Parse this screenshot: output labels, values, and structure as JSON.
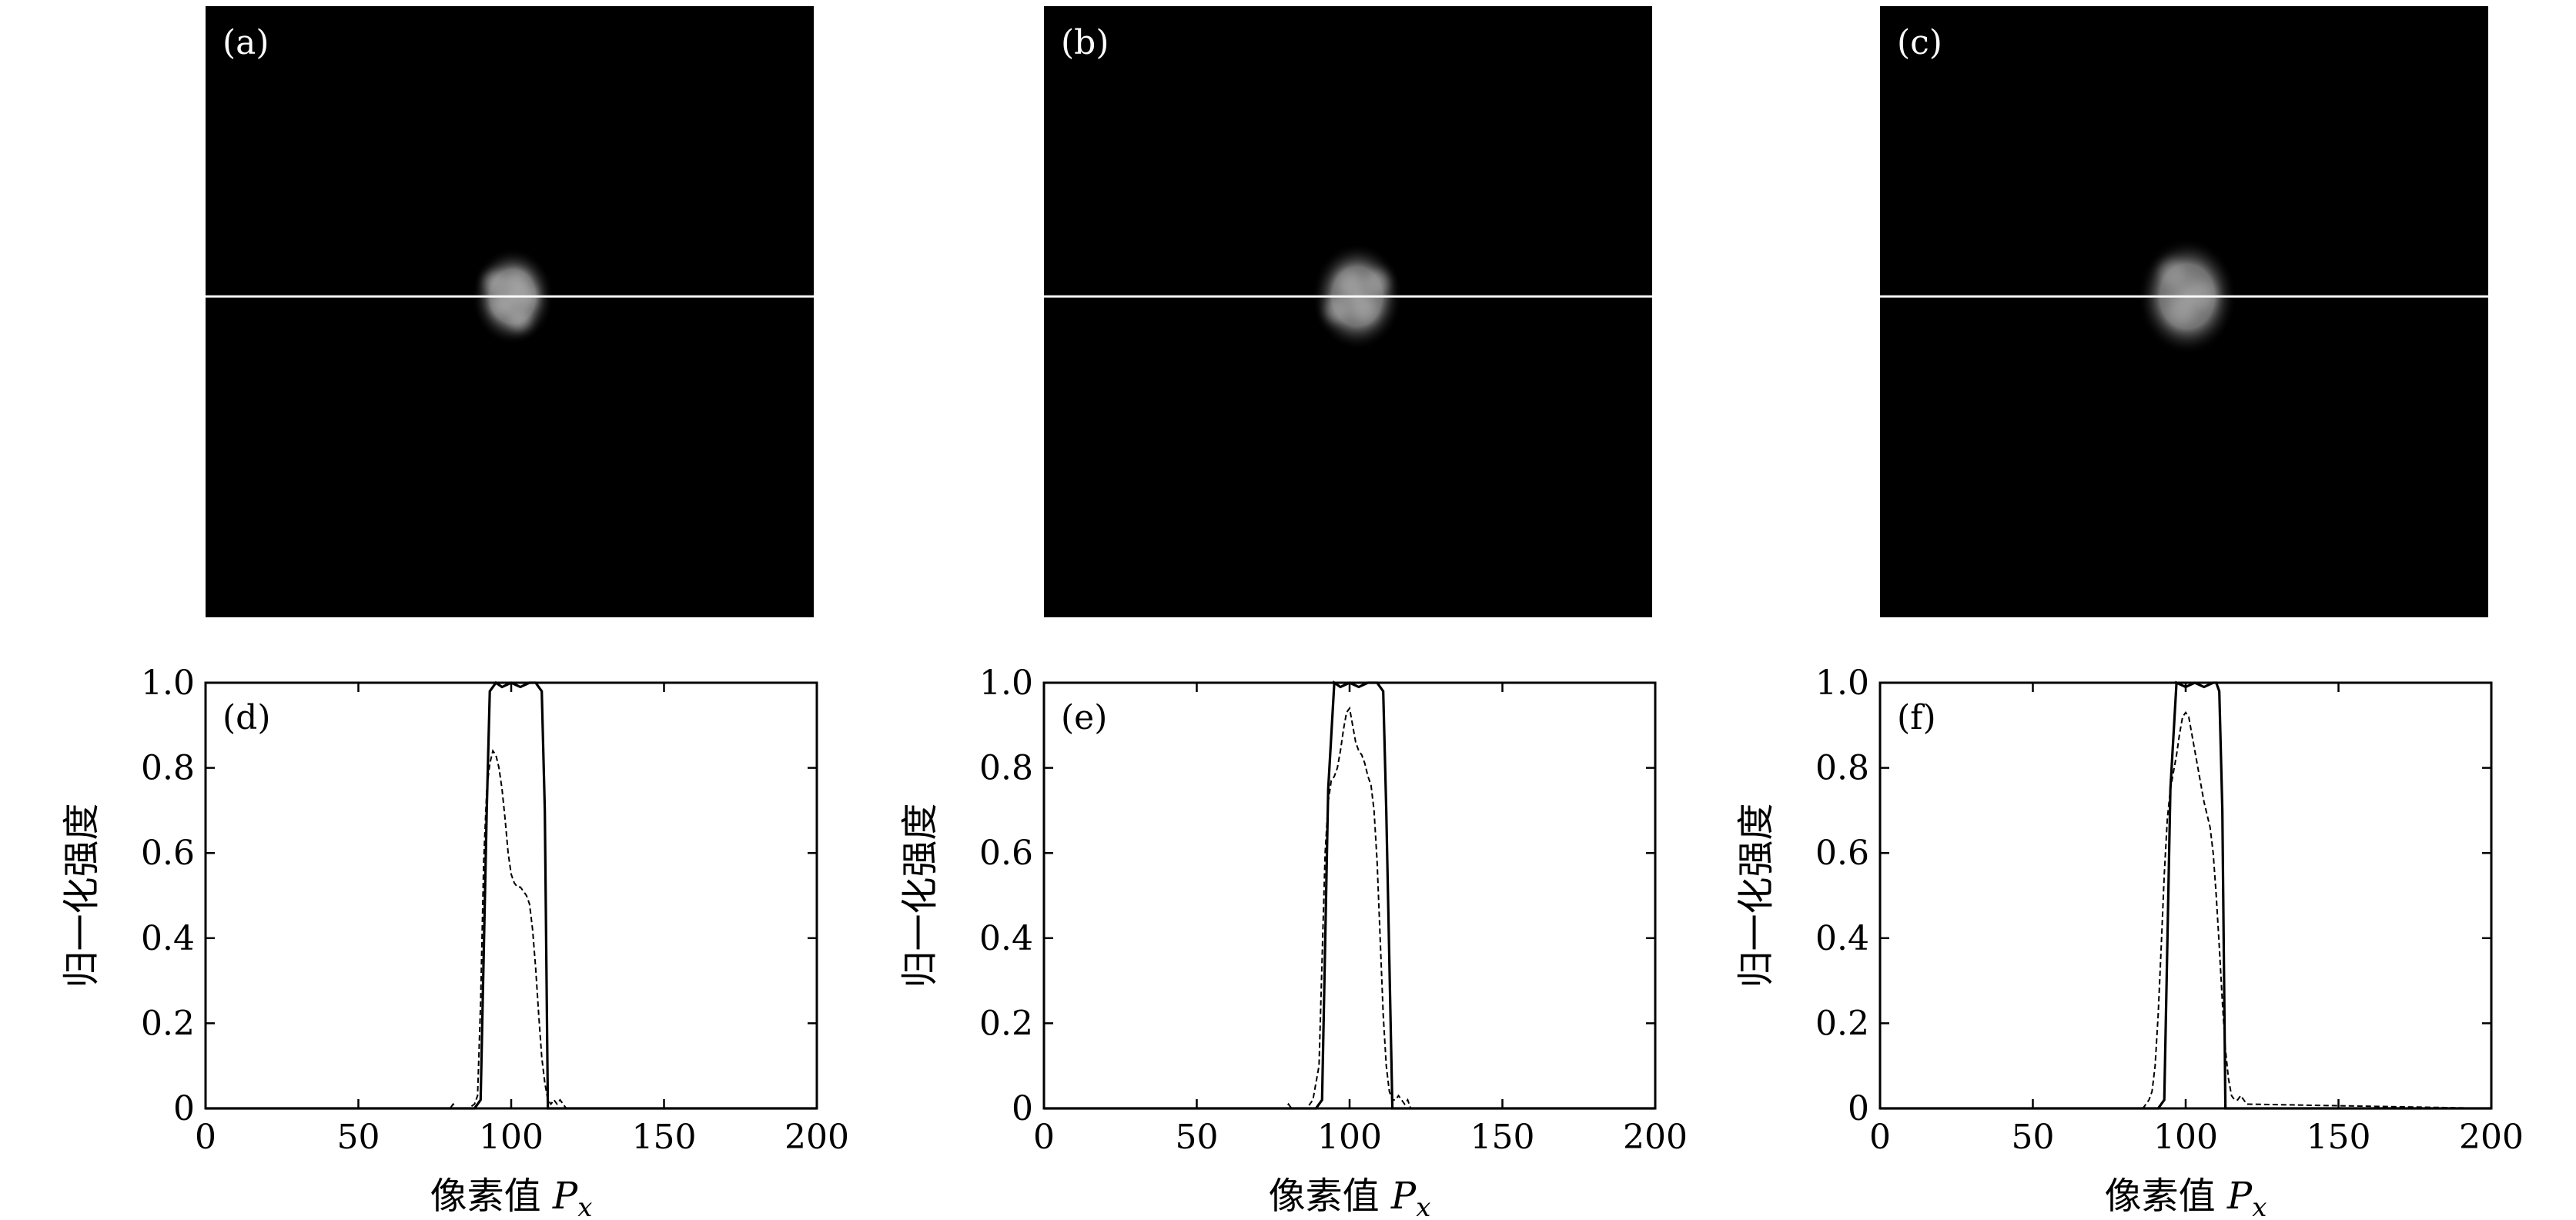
{
  "chart_data": [
    {
      "type": "image",
      "panel_label": "(a)",
      "spot": {
        "x": 101,
        "y": 95,
        "radius": 10,
        "speckle": 0.55
      },
      "profile_line_y": 95
    },
    {
      "type": "image",
      "panel_label": "(b)",
      "spot": {
        "x": 103,
        "y": 95,
        "radius": 11,
        "speckle": 0.35
      },
      "profile_line_y": 95
    },
    {
      "type": "image",
      "panel_label": "(c)",
      "spot": {
        "x": 101,
        "y": 95,
        "radius": 12,
        "speckle": 0.15
      },
      "profile_line_y": 95
    },
    {
      "type": "line",
      "panel_label": "(d)",
      "xlabel": "像素值 P_x",
      "xlabel_parts": {
        "text": "像素值 ",
        "var": "P",
        "sub": "x"
      },
      "ylabel": "归一化强度",
      "xlim": [
        0,
        200
      ],
      "ylim": [
        0,
        1.0
      ],
      "xticks": [
        0,
        50,
        100,
        150,
        200
      ],
      "xtick_labels": [
        "0",
        "50",
        "100",
        "150",
        "200"
      ],
      "yticks": [
        0,
        0.2,
        0.4,
        0.6,
        0.8,
        1.0
      ],
      "ytick_labels": [
        "0",
        "0.2",
        "0.4",
        "0.6",
        "0.8",
        "1.0"
      ],
      "series": [
        {
          "style": "solid",
          "x": [
            0,
            88,
            90,
            92,
            93,
            95,
            97,
            100,
            103,
            106,
            108,
            110,
            111,
            112,
            200
          ],
          "y": [
            0,
            0,
            0.02,
            0.7,
            0.98,
            1.0,
            0.99,
            1.0,
            0.99,
            1.0,
            1.0,
            0.98,
            0.7,
            0,
            0
          ]
        },
        {
          "style": "dashed",
          "x": [
            0,
            80,
            81,
            82,
            84,
            86,
            88,
            89,
            90,
            91,
            92,
            93,
            94,
            95,
            96,
            97,
            98,
            99,
            100,
            101,
            102,
            103,
            104,
            105,
            106,
            107,
            108,
            109,
            110,
            111,
            112,
            113,
            114,
            115,
            116,
            117,
            118,
            120,
            200
          ],
          "y": [
            0,
            0,
            0.01,
            0,
            0,
            0,
            0.01,
            0.03,
            0.25,
            0.58,
            0.75,
            0.81,
            0.84,
            0.83,
            0.8,
            0.75,
            0.68,
            0.6,
            0.55,
            0.53,
            0.52,
            0.52,
            0.51,
            0.5,
            0.48,
            0.42,
            0.33,
            0.22,
            0.12,
            0.06,
            0.02,
            0.01,
            0.02,
            0.01,
            0.02,
            0.01,
            0,
            0,
            0
          ]
        }
      ]
    },
    {
      "type": "line",
      "panel_label": "(e)",
      "xlabel": "像素值 P_x",
      "xlabel_parts": {
        "text": "像素值 ",
        "var": "P",
        "sub": "x"
      },
      "ylabel": "归一化强度",
      "xlim": [
        0,
        200
      ],
      "ylim": [
        0,
        1.0
      ],
      "xticks": [
        0,
        50,
        100,
        150,
        200
      ],
      "xtick_labels": [
        "0",
        "50",
        "100",
        "150",
        "200"
      ],
      "yticks": [
        0,
        0.2,
        0.4,
        0.6,
        0.8,
        1.0
      ],
      "ytick_labels": [
        "0",
        "0.2",
        "0.4",
        "0.6",
        "0.8",
        "1.0"
      ],
      "series": [
        {
          "style": "solid",
          "x": [
            0,
            89,
            91,
            93,
            95,
            97,
            100,
            103,
            106,
            109,
            111,
            112,
            114,
            200
          ],
          "y": [
            0,
            0,
            0.02,
            0.75,
            1.0,
            0.99,
            1.0,
            0.99,
            1.0,
            1.0,
            0.98,
            0.7,
            0,
            0
          ]
        },
        {
          "style": "dashed",
          "x": [
            0,
            79,
            80,
            81,
            83,
            86,
            88,
            90,
            91,
            92,
            93,
            94,
            95,
            96,
            97,
            98,
            99,
            100,
            101,
            102,
            103,
            104,
            105,
            106,
            107,
            108,
            109,
            110,
            111,
            112,
            113,
            114,
            115,
            116,
            117,
            118,
            119,
            120,
            200
          ],
          "y": [
            0,
            0,
            0.01,
            0,
            0,
            0,
            0.02,
            0.1,
            0.35,
            0.6,
            0.72,
            0.77,
            0.78,
            0.8,
            0.84,
            0.89,
            0.93,
            0.94,
            0.9,
            0.86,
            0.84,
            0.83,
            0.81,
            0.78,
            0.76,
            0.7,
            0.58,
            0.4,
            0.22,
            0.1,
            0.04,
            0.02,
            0.02,
            0.03,
            0.02,
            0.01,
            0.02,
            0,
            0
          ]
        }
      ]
    },
    {
      "type": "line",
      "panel_label": "(f)",
      "xlabel": "像素值 P_x",
      "xlabel_parts": {
        "text": "像素值 ",
        "var": "P",
        "sub": "x"
      },
      "ylabel": "归一化强度",
      "xlim": [
        0,
        200
      ],
      "ylim": [
        0,
        1.0
      ],
      "xticks": [
        0,
        50,
        100,
        150,
        200
      ],
      "xtick_labels": [
        "0",
        "50",
        "100",
        "150",
        "200"
      ],
      "yticks": [
        0,
        0.2,
        0.4,
        0.6,
        0.8,
        1.0
      ],
      "ytick_labels": [
        "0",
        "0.2",
        "0.4",
        "0.6",
        "0.8",
        "1.0"
      ],
      "series": [
        {
          "style": "solid",
          "x": [
            0,
            91,
            93,
            95,
            97,
            100,
            103,
            106,
            109,
            110,
            111,
            112,
            113,
            200
          ],
          "y": [
            0,
            0,
            0.02,
            0.75,
            1.0,
            0.99,
            1.0,
            0.99,
            1.0,
            1.0,
            0.98,
            0.7,
            0,
            0
          ]
        },
        {
          "style": "dashed",
          "x": [
            0,
            86,
            87,
            88,
            89,
            90,
            91,
            92,
            93,
            94,
            95,
            96,
            97,
            98,
            99,
            100,
            101,
            102,
            103,
            104,
            105,
            106,
            107,
            108,
            109,
            110,
            111,
            112,
            113,
            114,
            115,
            116,
            117,
            118,
            119,
            120,
            200
          ],
          "y": [
            0,
            0,
            0.01,
            0.02,
            0.04,
            0.1,
            0.22,
            0.38,
            0.55,
            0.68,
            0.75,
            0.79,
            0.83,
            0.88,
            0.92,
            0.93,
            0.92,
            0.88,
            0.84,
            0.8,
            0.76,
            0.72,
            0.69,
            0.66,
            0.6,
            0.5,
            0.38,
            0.25,
            0.14,
            0.07,
            0.03,
            0.02,
            0.02,
            0.03,
            0.02,
            0.01,
            0
          ]
        }
      ]
    }
  ]
}
